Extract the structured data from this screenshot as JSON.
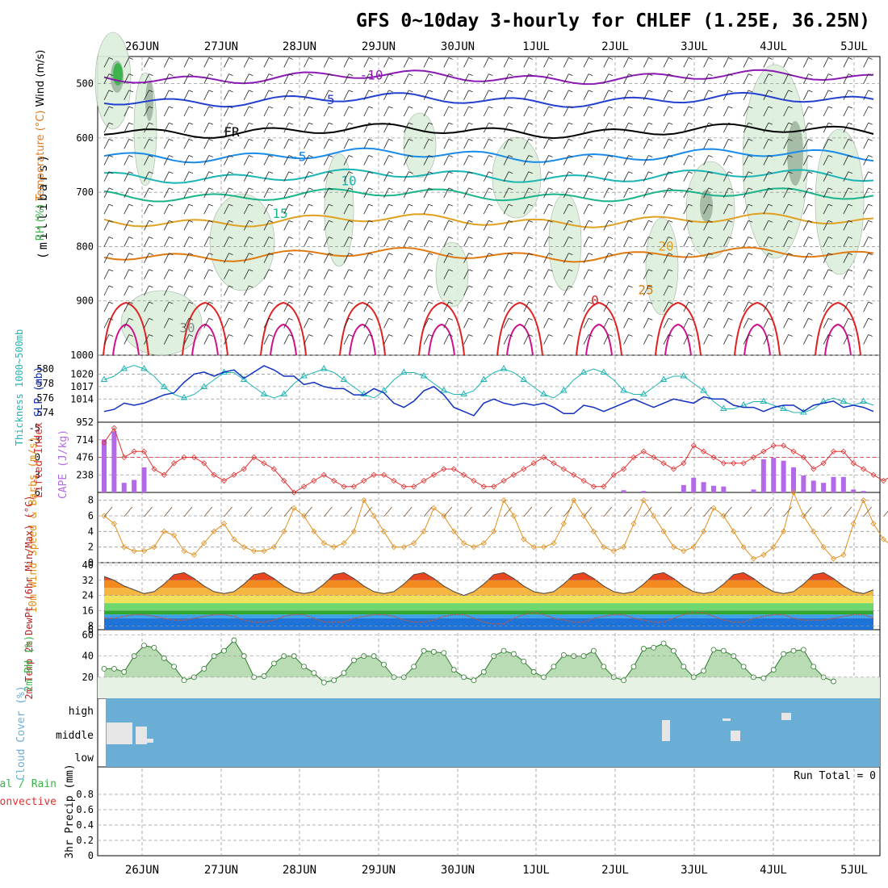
{
  "title": "GFS 0~10day 3-hourly for CHLEF (1.25E, 36.25N)",
  "date_labels": [
    "26JUN",
    "27JUN",
    "28JUN",
    "29JUN",
    "30JUN",
    "1JUL",
    "2JUL",
    "3JUL",
    "4JUL",
    "5JUL"
  ],
  "colors": {
    "rh_fill": "#3cb44b",
    "rh_light": "#dcefdc",
    "temp_minus10": "#8b1ab4",
    "temp_minus5": "#2340d0",
    "temp_fr": "#000000",
    "temp_5": "#1a8be8",
    "temp_10": "#1ab4b4",
    "temp_15": "#1ab48b",
    "temp_20": "#e0a020",
    "temp_25": "#e07a10",
    "temp_30": "#e02020",
    "slp": "#1030c0",
    "thickness": "#20b4b4",
    "lifted_index": "#e03030",
    "cape": "#b46ae8",
    "wind10m": "#e09020",
    "cloud": "#6aaed6",
    "precip_total": "#3cb44b",
    "precip_conv": "#e03030"
  },
  "chart_data": [
    {
      "panel": "upper-air",
      "type": "heatmap",
      "ylabel_parts": [
        "Wind (m/s)",
        "Temperature (°C)",
        "RH (%)",
        "(millibars)"
      ],
      "y_ticks": [
        500,
        600,
        700,
        800,
        900,
        1000
      ],
      "ylim": [
        1000,
        450
      ],
      "isotherm_labels": [
        {
          "label": "-10",
          "pressure": 485
        },
        {
          "label": "-5",
          "pressure": 530
        },
        {
          "label": "FR",
          "pressure": 590
        },
        {
          "label": "-5",
          "pressure": 635
        },
        {
          "label": "10",
          "pressure": 680
        },
        {
          "label": "15",
          "pressure": 740
        },
        {
          "label": "20",
          "pressure": 800
        },
        {
          "label": "25",
          "pressure": 880
        },
        {
          "label": "0",
          "pressure": 900
        },
        {
          "label": "30",
          "pressure": 950
        }
      ]
    },
    {
      "panel": "slp-thickness",
      "type": "line",
      "ylabel_left": "Thickness 1000~500mb",
      "ylabel_right": "SLP (mb)",
      "thickness_ticks": [
        574,
        576,
        578,
        580
      ],
      "slp_ticks": [
        1014,
        1017,
        1020
      ],
      "slp_series": [
        1011,
        1011.5,
        1013,
        1012.5,
        1013,
        1014,
        1015,
        1015.5,
        1018,
        1020,
        1020.5,
        1019.5,
        1020.5,
        1021,
        1019,
        1020.5,
        1022,
        1021,
        1019.5,
        1019.5,
        1017.5,
        1018,
        1017,
        1016.5,
        1016.5,
        1015,
        1015,
        1016.5,
        1015.5,
        1013,
        1012,
        1013.5,
        1016,
        1017,
        1015,
        1012,
        1011,
        1010,
        1013,
        1014,
        1013,
        1012.5,
        1013,
        1012.5,
        1013,
        1012,
        1010.5,
        1010.5,
        1012.5,
        1012,
        1011,
        1012,
        1013,
        1014,
        1013,
        1012,
        1013,
        1014,
        1013.5,
        1013,
        1014.5,
        1014,
        1014,
        1012.5,
        1012,
        1012,
        1011,
        1012,
        1012.5,
        1012.5,
        1011,
        1012.5,
        1013,
        1013.5,
        1012,
        1012.5,
        1012,
        1011
      ],
      "thickness_series": [
        578.5,
        579,
        580,
        580.5,
        580,
        579,
        577.5,
        576.5,
        576,
        576.5,
        577.5,
        578.5,
        579.5,
        579.5,
        578.5,
        577.5,
        576.5,
        576,
        576.5,
        578,
        579,
        579.5,
        580,
        579.5,
        578.5,
        577.5,
        576.5,
        576,
        577,
        578.5,
        579.5,
        579.5,
        579,
        578,
        577,
        576.5,
        576.5,
        577,
        578.5,
        579.5,
        580,
        579.5,
        578.5,
        577.5,
        576.5,
        576,
        577,
        578.5,
        579.5,
        580,
        579.5,
        578.5,
        577,
        576.5,
        576.5,
        577.5,
        578.5,
        579,
        579,
        578,
        577,
        575.5,
        574.5,
        574.5,
        575,
        575.5,
        575.5,
        575,
        574.5,
        574,
        574,
        574.5,
        575.5,
        576,
        575.5,
        575,
        575.5,
        575
      ]
    },
    {
      "panel": "lifted-cape",
      "type": "bar",
      "ylabel_left": "Lifted Index",
      "ylabel_right": "CAPE (J/kg)",
      "li_ticks": [
        -5,
        -3,
        0,
        3,
        6
      ],
      "cape_ticks": [
        238,
        476,
        714,
        952
      ],
      "cape_values": [
        720,
        830,
        130,
        170,
        340,
        0,
        0,
        0,
        0,
        0,
        0,
        0,
        0,
        0,
        0,
        0,
        0,
        0,
        0,
        0,
        0,
        0,
        0,
        0,
        0,
        0,
        0,
        0,
        0,
        0,
        0,
        0,
        0,
        0,
        0,
        0,
        0,
        0,
        0,
        0,
        0,
        0,
        0,
        0,
        0,
        0,
        0,
        0,
        0,
        0,
        0,
        0,
        30,
        0,
        20,
        0,
        0,
        0,
        100,
        200,
        140,
        90,
        80,
        0,
        0,
        40,
        450,
        470,
        430,
        340,
        230,
        160,
        130,
        210,
        210,
        40,
        20,
        0,
        0,
        0,
        0
      ],
      "li_series": [
        -2.5,
        -5,
        0,
        -1,
        -1,
        2,
        3,
        1,
        0,
        0,
        1,
        3,
        4,
        3,
        2,
        0,
        1,
        2,
        4,
        6,
        5,
        4,
        3,
        4,
        5,
        5,
        4,
        3,
        3,
        4,
        5,
        5,
        4,
        3,
        2,
        2,
        3,
        4,
        5,
        5,
        4,
        3,
        2,
        1,
        0,
        1,
        2,
        3,
        4,
        5,
        5,
        3,
        2,
        0,
        -1,
        0,
        1,
        2,
        1,
        -2,
        -1,
        0,
        1,
        1,
        1,
        0,
        -1,
        -2,
        -2,
        -1,
        0,
        2,
        1,
        -1,
        -1,
        1,
        2,
        3,
        4,
        3,
        2
      ]
    },
    {
      "panel": "wind10m",
      "type": "line",
      "ylabel": "10m Wind Speed & Barbs (m/s)",
      "y_ticks": [
        0,
        2,
        4,
        6,
        8
      ],
      "ylim": [
        0,
        9
      ],
      "values": [
        6,
        5,
        2,
        1.5,
        1.5,
        2,
        4,
        3.5,
        1.5,
        1,
        2.5,
        4,
        5,
        3,
        2,
        1.5,
        1.5,
        2,
        4,
        7,
        6,
        4,
        2.5,
        2,
        2.5,
        4,
        8,
        6,
        4,
        2,
        2,
        2.5,
        4,
        7,
        6,
        4,
        2.5,
        2,
        2.5,
        4,
        8,
        6,
        3,
        2,
        2,
        2.5,
        5,
        8,
        6,
        4,
        2,
        1.5,
        2,
        5,
        8,
        6,
        4,
        2,
        1.5,
        2,
        4,
        7,
        6,
        4,
        2,
        0.5,
        1,
        2,
        4,
        9,
        6,
        4,
        2,
        0.5,
        1,
        5,
        8,
        5,
        3,
        2,
        2
      ]
    },
    {
      "panel": "temp2m",
      "type": "area",
      "ylabel": "2m Temp 2m DewPt (6hr Min/Max) (°C)",
      "y_ticks": [
        8,
        16,
        24,
        32,
        40
      ],
      "ylim": [
        6,
        40
      ],
      "temp_values": [
        34,
        32,
        29,
        27,
        25,
        26,
        30,
        35,
        36,
        33,
        29,
        26,
        25,
        26,
        30,
        35,
        36,
        33,
        29,
        26,
        25,
        26,
        30,
        35,
        36,
        33,
        29,
        26,
        25,
        26,
        30,
        35,
        36,
        33,
        29,
        26,
        24,
        26,
        30,
        35,
        36,
        33,
        29,
        26,
        25,
        26,
        30,
        35,
        36,
        33,
        29,
        26,
        25,
        26,
        30,
        35,
        36,
        33,
        29,
        26,
        25,
        26,
        30,
        35,
        36,
        33,
        29,
        26,
        25,
        26,
        30,
        35,
        36,
        33,
        29,
        26,
        25,
        27
      ],
      "dewpt_values": [
        12,
        12,
        13,
        14,
        14,
        13,
        12,
        11,
        11,
        12,
        13,
        14,
        14,
        13,
        11,
        10,
        10,
        11,
        13,
        14,
        14,
        12,
        10,
        10,
        10,
        12,
        13,
        14,
        14,
        13,
        11,
        10,
        10,
        11,
        13,
        14,
        14,
        12,
        10,
        9,
        9,
        12,
        14,
        15,
        14,
        12,
        11,
        10,
        10,
        12,
        13,
        14,
        14,
        12,
        11,
        10,
        10,
        12,
        14,
        15,
        15,
        13,
        11,
        10,
        10,
        12,
        13,
        14,
        14,
        12,
        11,
        11,
        11,
        12,
        13,
        14,
        14,
        12
      ]
    },
    {
      "panel": "rh2m",
      "type": "area",
      "ylabel": "2m RH (%)",
      "y_ticks": [
        20,
        40,
        60
      ],
      "ylim": [
        0,
        65
      ],
      "values": [
        28,
        28,
        25,
        40,
        50,
        48,
        38,
        30,
        17,
        20,
        28,
        40,
        45,
        55,
        40,
        20,
        21,
        33,
        40,
        40,
        30,
        24,
        15,
        17,
        24,
        36,
        40,
        40,
        32,
        20,
        20,
        30,
        45,
        44,
        43,
        27,
        20,
        17,
        25,
        40,
        45,
        42,
        35,
        25,
        20,
        30,
        41,
        40,
        40,
        45,
        30,
        20,
        17,
        30,
        47,
        48,
        52,
        45,
        30,
        20,
        26,
        46,
        45,
        40,
        30,
        20,
        19,
        27,
        42,
        45,
        46,
        30,
        20,
        16
      ],
      "rh_note": ""
    },
    {
      "panel": "cloud",
      "type": "bar",
      "ylabel": "Cloud Cover (%)",
      "levels": [
        "high",
        "middle",
        "low"
      ]
    },
    {
      "panel": "precip",
      "type": "bar",
      "ylabel": "3hr Precip (mm)",
      "legend_left": [
        "Total / Rain",
        "Convective"
      ],
      "y_ticks": [
        0,
        0.2,
        0.4,
        0.6,
        0.8
      ],
      "ylim": [
        0,
        1
      ],
      "run_total_label": "Run Total = 0",
      "values": []
    }
  ]
}
